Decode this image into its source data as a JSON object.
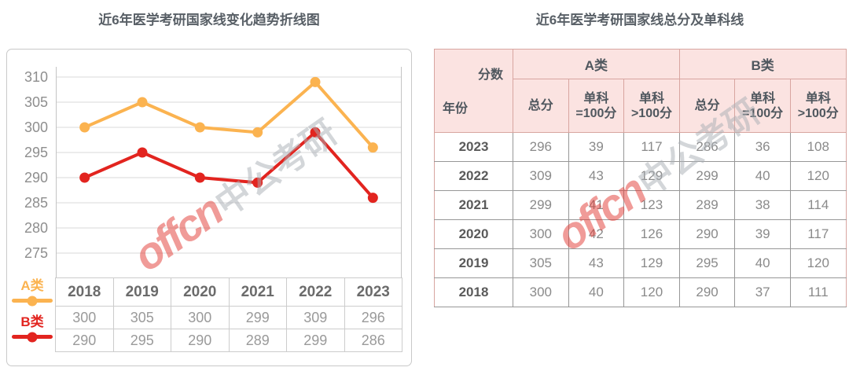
{
  "left_panel": {
    "title": "近6年医学考研国家线变化趋势折线图"
  },
  "right_panel": {
    "title": "近6年医学考研国家线总分及单科线"
  },
  "watermark": {
    "brand": "offcn",
    "suffix": "中公考研"
  },
  "colors": {
    "series_a": "#fbb350",
    "series_b": "#e2241f",
    "grid": "#d9d9d9",
    "axis": "#c4c4c4",
    "tick_text": "#8e8e8e",
    "header_pink_bg": "#fbe3e1",
    "header_pink_border": "#d8a5a0",
    "title_text": "#585f66"
  },
  "chart_data": [
    {
      "type": "line",
      "title": "近6年医学考研国家线变化趋势折线图",
      "categories": [
        "2018",
        "2019",
        "2020",
        "2021",
        "2022",
        "2023"
      ],
      "series": [
        {
          "name": "A类",
          "color": "#fbb350",
          "values": [
            300,
            305,
            300,
            299,
            309,
            296
          ]
        },
        {
          "name": "B类",
          "color": "#e2241f",
          "values": [
            290,
            295,
            290,
            289,
            299,
            286
          ]
        }
      ],
      "yticks": [
        310,
        305,
        300,
        295,
        290,
        285,
        280,
        275
      ],
      "ylim": [
        272,
        312
      ],
      "xlabel": "",
      "ylabel": "",
      "grid": true,
      "legend_position": "bottom-left"
    },
    {
      "type": "table",
      "title": "近6年医学考研国家线总分及单科线",
      "corner": {
        "score_label": "分数",
        "year_label": "年份"
      },
      "group_headers": [
        "A类",
        "B类"
      ],
      "sub_headers": [
        {
          "l1": "总分",
          "l2": ""
        },
        {
          "l1": "单科",
          "l2": "=100分"
        },
        {
          "l1": "单科",
          "l2": ">100分"
        },
        {
          "l1": "总分",
          "l2": ""
        },
        {
          "l1": "单科",
          "l2": "=100分"
        },
        {
          "l1": "单科",
          "l2": ">100分"
        }
      ],
      "rows": [
        {
          "year": "2023",
          "values": [
            "296",
            "39",
            "117",
            "286",
            "36",
            "108"
          ]
        },
        {
          "year": "2022",
          "values": [
            "309",
            "43",
            "129",
            "299",
            "40",
            "120"
          ]
        },
        {
          "year": "2021",
          "values": [
            "299",
            "41",
            "123",
            "289",
            "38",
            "114"
          ]
        },
        {
          "year": "2020",
          "values": [
            "300",
            "42",
            "126",
            "290",
            "39",
            "117"
          ]
        },
        {
          "year": "2019",
          "values": [
            "305",
            "43",
            "129",
            "295",
            "40",
            "120"
          ]
        },
        {
          "year": "2018",
          "values": [
            "300",
            "40",
            "120",
            "290",
            "37",
            "111"
          ]
        }
      ]
    }
  ]
}
